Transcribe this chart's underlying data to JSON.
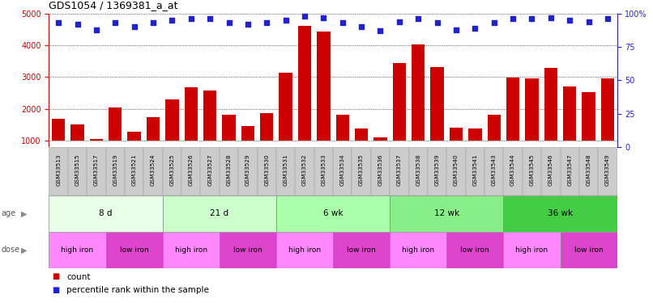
{
  "title": "GDS1054 / 1369381_a_at",
  "samples": [
    "GSM33513",
    "GSM33515",
    "GSM33517",
    "GSM33519",
    "GSM33521",
    "GSM33524",
    "GSM33525",
    "GSM33526",
    "GSM33527",
    "GSM33528",
    "GSM33529",
    "GSM33530",
    "GSM33531",
    "GSM33532",
    "GSM33533",
    "GSM33534",
    "GSM33535",
    "GSM33536",
    "GSM33537",
    "GSM33538",
    "GSM33539",
    "GSM33540",
    "GSM33541",
    "GSM33543",
    "GSM33544",
    "GSM33545",
    "GSM33546",
    "GSM33547",
    "GSM33548",
    "GSM33549"
  ],
  "counts": [
    1700,
    1520,
    1050,
    2040,
    1280,
    1750,
    2300,
    2670,
    2570,
    1820,
    1470,
    1870,
    3150,
    4620,
    4440,
    1820,
    1380,
    1100,
    3450,
    4020,
    3310,
    1420,
    1390,
    1820,
    2980,
    2960,
    3290,
    2700,
    2520,
    2960
  ],
  "percentiles": [
    93,
    92,
    88,
    93,
    90,
    93,
    95,
    96,
    96,
    93,
    92,
    93,
    95,
    98,
    97,
    93,
    90,
    87,
    94,
    96,
    93,
    88,
    89,
    93,
    96,
    96,
    97,
    95,
    94,
    96
  ],
  "age_groups": [
    {
      "label": "8 d",
      "start": 0,
      "end": 6,
      "color": "#e8ffe8"
    },
    {
      "label": "21 d",
      "start": 6,
      "end": 12,
      "color": "#ccffcc"
    },
    {
      "label": "6 wk",
      "start": 12,
      "end": 18,
      "color": "#aaffaa"
    },
    {
      "label": "12 wk",
      "start": 18,
      "end": 24,
      "color": "#88ee88"
    },
    {
      "label": "36 wk",
      "start": 24,
      "end": 30,
      "color": "#44cc44"
    }
  ],
  "dose_groups": [
    {
      "label": "high iron",
      "start": 0,
      "end": 3,
      "color": "#ff88ff"
    },
    {
      "label": "low iron",
      "start": 3,
      "end": 6,
      "color": "#dd44cc"
    },
    {
      "label": "high iron",
      "start": 6,
      "end": 9,
      "color": "#ff88ff"
    },
    {
      "label": "low iron",
      "start": 9,
      "end": 12,
      "color": "#dd44cc"
    },
    {
      "label": "high iron",
      "start": 12,
      "end": 15,
      "color": "#ff88ff"
    },
    {
      "label": "low iron",
      "start": 15,
      "end": 18,
      "color": "#dd44cc"
    },
    {
      "label": "high iron",
      "start": 18,
      "end": 21,
      "color": "#ff88ff"
    },
    {
      "label": "low iron",
      "start": 21,
      "end": 24,
      "color": "#dd44cc"
    },
    {
      "label": "high iron",
      "start": 24,
      "end": 27,
      "color": "#ff88ff"
    },
    {
      "label": "low iron",
      "start": 27,
      "end": 30,
      "color": "#dd44cc"
    }
  ],
  "bar_color": "#cc0000",
  "dot_color": "#2222cc",
  "ylim_left": [
    800,
    5000
  ],
  "ylim_right": [
    0,
    100
  ],
  "yticks_left": [
    1000,
    2000,
    3000,
    4000,
    5000
  ],
  "yticks_right": [
    0,
    25,
    50,
    75,
    100
  ],
  "background_color": "#ffffff",
  "xticklabel_bg": "#cccccc",
  "xticklabel_fontsize": 5.5,
  "bar_bottom": 1000
}
